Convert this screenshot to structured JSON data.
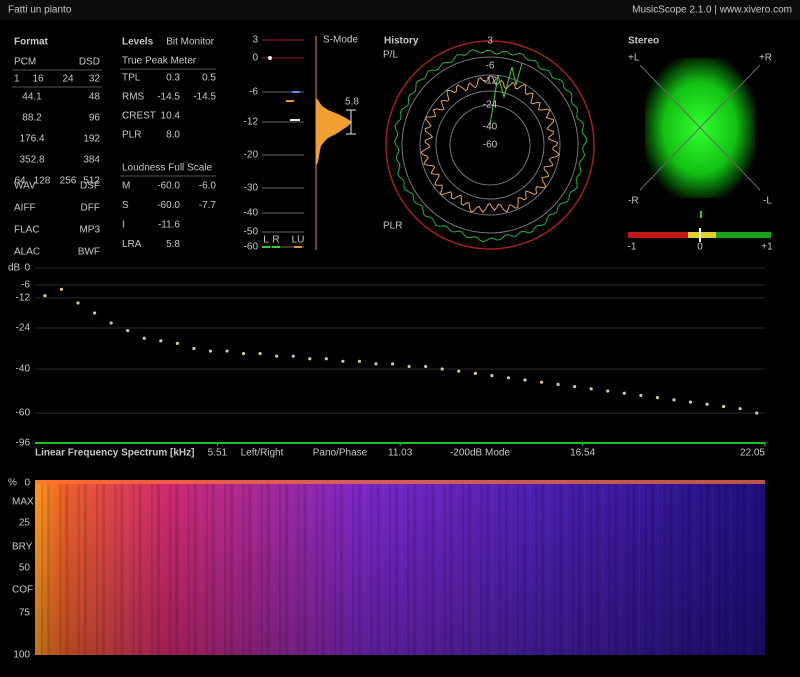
{
  "header": {
    "title": "Fatti un pianto",
    "app": "MusicScope 2.1.0 | www.xivero.com"
  },
  "format": {
    "title": "Format",
    "pcm": "PCM",
    "dsd": "DSD",
    "bits": [
      "1",
      "16",
      "24",
      "32"
    ],
    "rates": [
      [
        "44.1",
        "48"
      ],
      [
        "88.2",
        "96"
      ],
      [
        "176.4",
        "192"
      ],
      [
        "352.8",
        "384"
      ]
    ],
    "dsd_rates": [
      "64",
      "128",
      "256",
      "512"
    ],
    "containers": [
      [
        "WAV",
        "DSF"
      ],
      [
        "AIFF",
        "DFF"
      ],
      [
        "FLAC",
        "MP3"
      ],
      [
        "ALAC",
        "BWF"
      ]
    ]
  },
  "levels": {
    "title": "Levels",
    "bit_monitor": "Bit Monitor",
    "true_peak": "True Peak Meter",
    "rows": [
      [
        "TPL",
        "0.3",
        "0.5"
      ],
      [
        "RMS",
        "-14.5",
        "-14.5"
      ],
      [
        "CREST",
        "10.4"
      ],
      [
        "PLR",
        "8.0"
      ]
    ],
    "loudness": "Loudness Full Scale",
    "loud_rows": [
      [
        "M",
        "-60.0",
        "-6.0"
      ],
      [
        "S",
        "-60.0",
        "-7.7"
      ],
      [
        "I",
        "-11.6"
      ],
      [
        "LRA",
        "5.8"
      ]
    ]
  },
  "smode": {
    "title": "S-Mode",
    "scale": [
      "3",
      "0",
      "-6",
      "-12",
      "-20",
      "-30",
      "-40",
      "-50",
      "-60"
    ],
    "value": "5.8",
    "channels": [
      "L",
      "R",
      "LU"
    ]
  },
  "history": {
    "title": "History",
    "pl": "P/L",
    "plr": "PLR",
    "rings": [
      "3",
      "-6",
      "-12",
      "-24",
      "-40",
      "-60"
    ]
  },
  "stereo": {
    "title": "Stereo",
    "corners": [
      "+L",
      "+R",
      "-R",
      "-L"
    ],
    "correlation": [
      "-1",
      "0",
      "+1"
    ]
  },
  "spectrum_modes": [
    "Left/Right",
    "Pano/Phase",
    "-200dB Mode"
  ],
  "chart_data": {
    "type": "scatter",
    "y_label": "dB",
    "x_label": "Linear Frequency Spectrum [kHz]",
    "xlim": [
      0,
      22.05
    ],
    "xticks": [
      5.51,
      11.03,
      16.54,
      22.05
    ],
    "ylim": [
      -96,
      0
    ],
    "yticks": [
      0,
      -6,
      -12,
      -24,
      -40,
      -60,
      -96
    ],
    "color": "#d8c49c",
    "grid": true,
    "x": [
      0.3,
      0.8,
      1.3,
      1.8,
      2.3,
      2.8,
      3.3,
      3.8,
      4.3,
      4.8,
      5.3,
      5.8,
      6.3,
      6.8,
      7.3,
      7.8,
      8.3,
      8.8,
      9.3,
      9.8,
      10.3,
      10.8,
      11.3,
      11.8,
      12.3,
      12.8,
      13.3,
      13.8,
      14.3,
      14.8,
      15.3,
      15.8,
      16.3,
      16.8,
      17.3,
      17.8,
      18.3,
      18.8,
      19.3,
      19.8,
      20.3,
      20.8,
      21.3,
      21.8
    ],
    "values": [
      -11,
      -8,
      -14,
      -18,
      -22,
      -25,
      -28,
      -29,
      -30,
      -32,
      -33,
      -33,
      -34,
      -34,
      -35,
      -35,
      -36,
      -36,
      -37,
      -37,
      -38,
      -38,
      -39,
      -39,
      -40,
      -41,
      -42,
      -43,
      -44,
      -45,
      -46,
      -47,
      -48,
      -49,
      -50,
      -51,
      -52,
      -53,
      -54,
      -55,
      -56,
      -57,
      -58,
      -60
    ]
  },
  "spectrogram": {
    "axis_label": "%",
    "labels": [
      "0",
      "MAX",
      "25",
      "BRY",
      "50",
      "COF",
      "75",
      "100"
    ]
  }
}
